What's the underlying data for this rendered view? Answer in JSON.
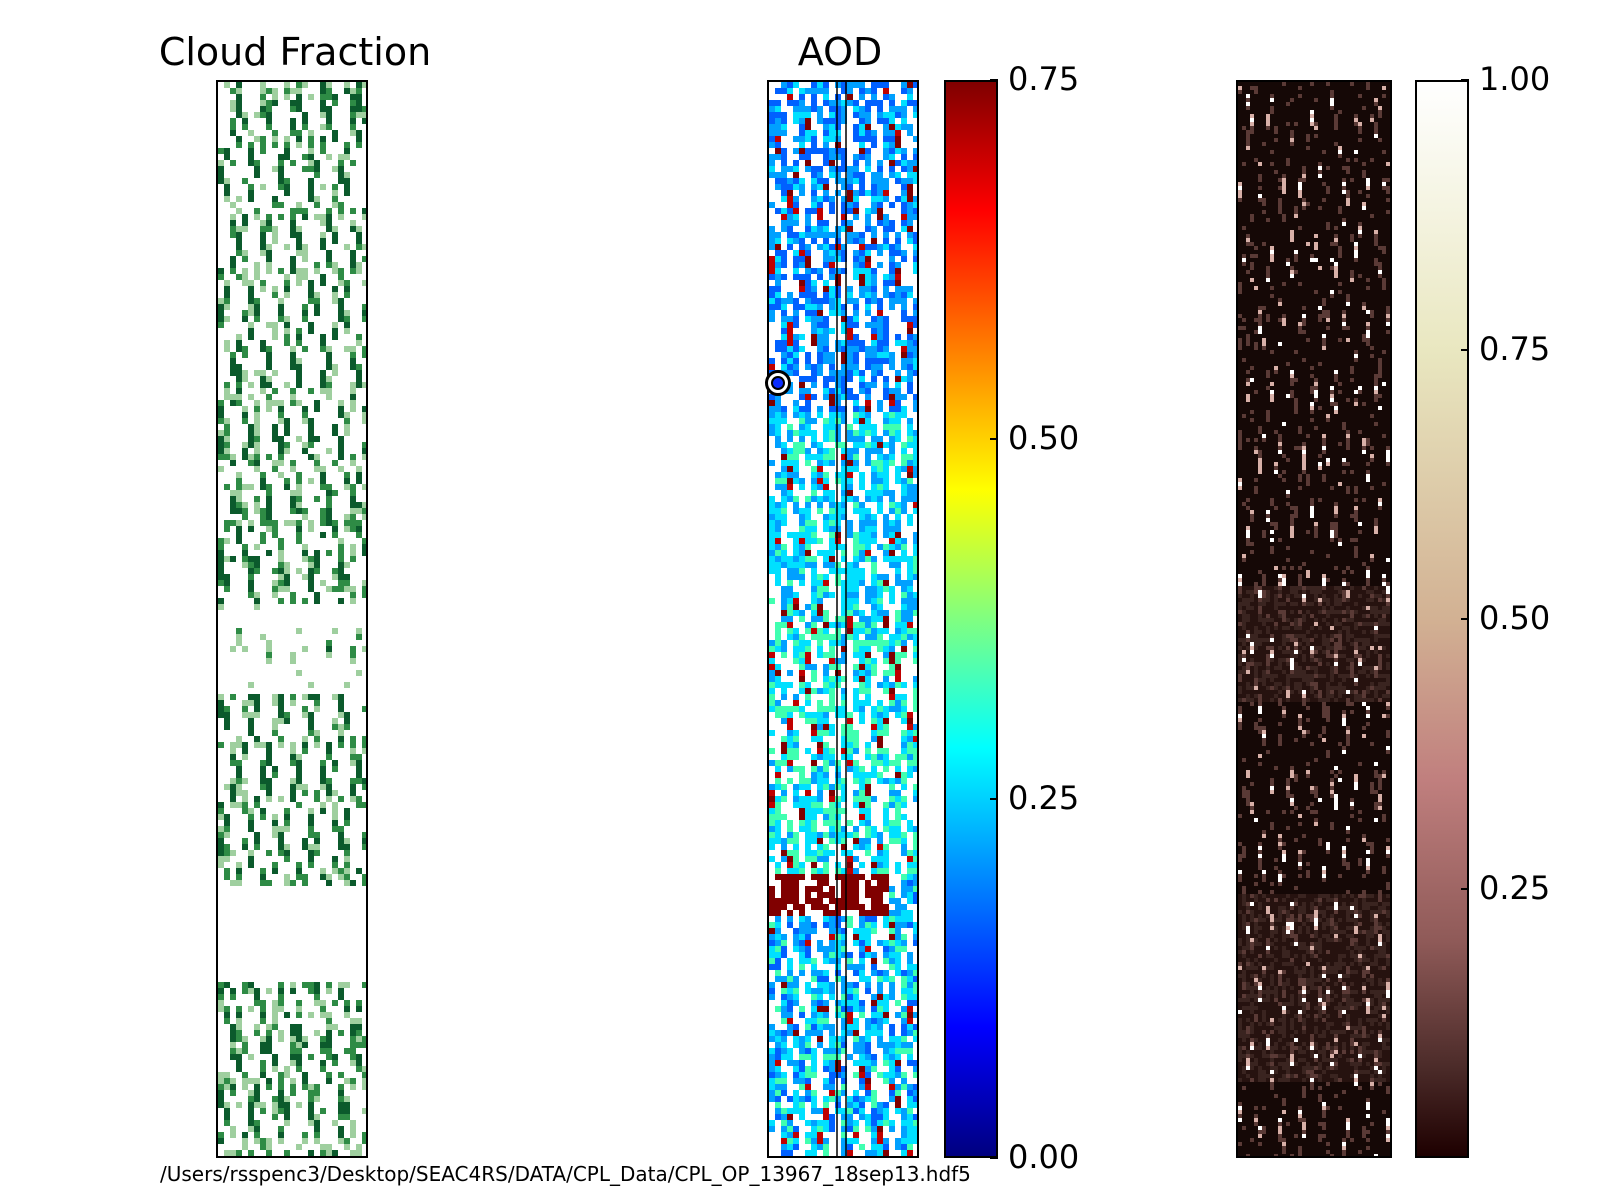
{
  "chart_data": [
    {
      "type": "heatmap",
      "title": "Cloud Fraction",
      "colormap": "greens",
      "colors": {
        "dark": "#0b5a2c",
        "mid": "#2e8b45",
        "edge": "#9fcf9f"
      }
    },
    {
      "type": "heatmap",
      "title": "AOD",
      "colormap": "jet",
      "colorbar": {
        "min": 0.0,
        "max": 0.75,
        "ticks": [
          "0.00",
          "0.25",
          "0.50",
          "0.75"
        ]
      },
      "annotation": "circle-marker"
    },
    {
      "type": "heatmap",
      "title": "",
      "colormap": "pink",
      "colorbar": {
        "min": 0.0,
        "max": 1.0,
        "ticks": [
          "0.25",
          "0.50",
          "0.75",
          "1.00"
        ]
      }
    }
  ],
  "footer": {
    "file_path": "/Users/rsspenc3/Desktop/SEAC4RS/DATA/CPL_Data/CPL_OP_13967_18sep13.hdf5"
  }
}
